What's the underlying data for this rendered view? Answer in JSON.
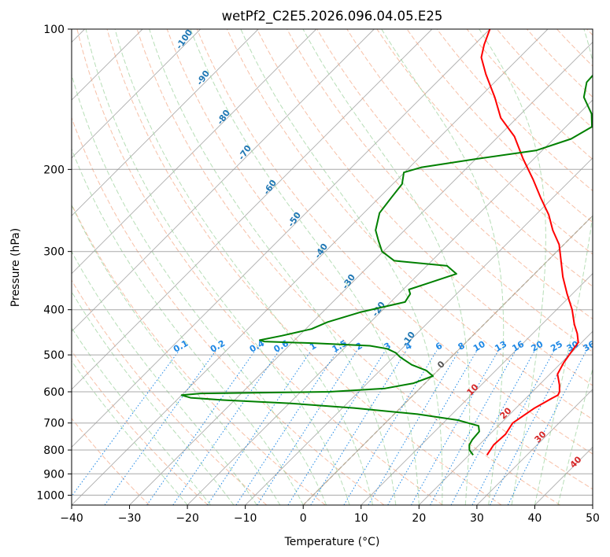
{
  "chart_data": {
    "type": "line",
    "subtype": "skew-T log-P diagram",
    "title": "wetPf2_C2E5.2026.096.04.05.E25",
    "xlabel": "Temperature (°C)",
    "ylabel": "Pressure (hPa)",
    "xlim": [
      -40,
      50
    ],
    "ylim": [
      1050,
      100
    ],
    "y_scale": "log",
    "x_ticks": [
      -40,
      -30,
      -20,
      -10,
      0,
      10,
      20,
      30,
      40,
      50
    ],
    "x_tick_labels": [
      "−40",
      "−30",
      "−20",
      "−10",
      "0",
      "10",
      "20",
      "30",
      "40",
      "50"
    ],
    "y_ticks": [
      100,
      200,
      300,
      400,
      500,
      600,
      700,
      800,
      900,
      1000
    ],
    "y_tick_labels": [
      "100",
      "200",
      "300",
      "400",
      "500",
      "600",
      "700",
      "800",
      "900",
      "1000"
    ],
    "grid": true,
    "colors": {
      "temperature": "#ff0000",
      "dewpoint": "#008000",
      "isotherm": "#999999",
      "dry_adiabat": "#f4a582",
      "moist_adiabat": "#9fd39f",
      "mixing_ratio": "#1e88e5",
      "dry_adiabat_label": "#d62728",
      "moist_adiabat_label": "#1f77b4",
      "zero_isotherm": "#e3c9a3"
    },
    "series": [
      {
        "role": "temperature",
        "color": "#ff0000",
        "points": [
          {
            "p": 820,
            "t": 23.1
          },
          {
            "p": 780,
            "t": 22.5
          },
          {
            "p": 740,
            "t": 22.7
          },
          {
            "p": 700,
            "t": 22.0
          },
          {
            "p": 650,
            "t": 23.2
          },
          {
            "p": 620,
            "t": 24.5
          },
          {
            "p": 610,
            "t": 25.0
          },
          {
            "p": 600,
            "t": 24.7
          },
          {
            "p": 580,
            "t": 23.5
          },
          {
            "p": 550,
            "t": 21.3
          },
          {
            "p": 520,
            "t": 20.4
          },
          {
            "p": 500,
            "t": 20.0
          },
          {
            "p": 470,
            "t": 19.4
          },
          {
            "p": 450,
            "t": 17.7
          },
          {
            "p": 430,
            "t": 15.6
          },
          {
            "p": 400,
            "t": 12.7
          },
          {
            "p": 370,
            "t": 9.1
          },
          {
            "p": 340,
            "t": 5.4
          },
          {
            "p": 310,
            "t": 1.8
          },
          {
            "p": 290,
            "t": -0.8
          },
          {
            "p": 270,
            "t": -4.4
          },
          {
            "p": 250,
            "t": -7.8
          },
          {
            "p": 230,
            "t": -12.1
          },
          {
            "p": 210,
            "t": -16.6
          },
          {
            "p": 190,
            "t": -21.8
          },
          {
            "p": 170,
            "t": -27.2
          },
          {
            "p": 155,
            "t": -32.8
          },
          {
            "p": 140,
            "t": -37.4
          },
          {
            "p": 125,
            "t": -42.9
          },
          {
            "p": 115,
            "t": -46.6
          },
          {
            "p": 108,
            "t": -48.3
          },
          {
            "p": 100,
            "t": -50.0
          }
        ]
      },
      {
        "role": "dewpoint",
        "color": "#008000",
        "points": [
          {
            "p": 820,
            "t": 20.7
          },
          {
            "p": 800,
            "t": 19.2
          },
          {
            "p": 780,
            "t": 18.3
          },
          {
            "p": 760,
            "t": 17.9
          },
          {
            "p": 730,
            "t": 17.7
          },
          {
            "p": 710,
            "t": 16.6
          },
          {
            "p": 690,
            "t": 12.0
          },
          {
            "p": 670,
            "t": 4.0
          },
          {
            "p": 650,
            "t": -8.0
          },
          {
            "p": 635,
            "t": -20.0
          },
          {
            "p": 625,
            "t": -32.0
          },
          {
            "p": 618,
            "t": -38.0
          },
          {
            "p": 610,
            "t": -40.0
          },
          {
            "p": 605,
            "t": -37.0
          },
          {
            "p": 600,
            "t": -15.0
          },
          {
            "p": 590,
            "t": -6.0
          },
          {
            "p": 575,
            "t": -2.0
          },
          {
            "p": 555,
            "t": 0.1
          },
          {
            "p": 540,
            "t": -2.0
          },
          {
            "p": 525,
            "t": -5.5
          },
          {
            "p": 505,
            "t": -8.9
          },
          {
            "p": 495,
            "t": -10.3
          },
          {
            "p": 485,
            "t": -12.5
          },
          {
            "p": 478,
            "t": -16.0
          },
          {
            "p": 472,
            "t": -26.0
          },
          {
            "p": 468,
            "t": -35.0
          },
          {
            "p": 465,
            "t": -36.0
          },
          {
            "p": 455,
            "t": -33.0
          },
          {
            "p": 440,
            "t": -29.0
          },
          {
            "p": 425,
            "t": -27.4
          },
          {
            "p": 405,
            "t": -23.5
          },
          {
            "p": 385,
            "t": -17.5
          },
          {
            "p": 370,
            "t": -18.0
          },
          {
            "p": 362,
            "t": -19.0
          },
          {
            "p": 352,
            "t": -17.0
          },
          {
            "p": 335,
            "t": -13.5
          },
          {
            "p": 322,
            "t": -16.5
          },
          {
            "p": 314,
            "t": -26.5
          },
          {
            "p": 300,
            "t": -30.2
          },
          {
            "p": 285,
            "t": -32.6
          },
          {
            "p": 270,
            "t": -35.0
          },
          {
            "p": 248,
            "t": -37.3
          },
          {
            "p": 230,
            "t": -37.9
          },
          {
            "p": 215,
            "t": -38.4
          },
          {
            "p": 203,
            "t": -40.1
          },
          {
            "p": 198,
            "t": -38.0
          },
          {
            "p": 190,
            "t": -30.0
          },
          {
            "p": 182,
            "t": -21.0
          },
          {
            "p": 172,
            "t": -17.0
          },
          {
            "p": 162,
            "t": -15.5
          },
          {
            "p": 152,
            "t": -17.8
          },
          {
            "p": 140,
            "t": -22.0
          },
          {
            "p": 130,
            "t": -24.1
          },
          {
            "p": 120,
            "t": -24.4
          },
          {
            "p": 112,
            "t": -24.3
          },
          {
            "p": 106,
            "t": -22.0
          },
          {
            "p": 100,
            "t": -20.0
          }
        ]
      }
    ],
    "dry_adiabat_labels": [
      "0",
      "10",
      "20",
      "30",
      "40"
    ],
    "moist_adiabat_labels": [
      "-100",
      "-90",
      "-80",
      "-70",
      "-60",
      "-50",
      "-40",
      "-30",
      "-20",
      "-10"
    ],
    "mixing_ratio_labels": [
      "0.1",
      "0.2",
      "0.4",
      "0.6",
      "1",
      "1.5",
      "2",
      "3",
      "4",
      "6",
      "8",
      "10",
      "13",
      "16",
      "20",
      "25",
      "30",
      "36"
    ],
    "mixing_ratio_values": [
      0.1,
      0.2,
      0.4,
      0.6,
      1,
      1.5,
      2,
      3,
      4,
      6,
      8,
      10,
      13,
      16,
      20,
      25,
      30,
      36
    ]
  }
}
